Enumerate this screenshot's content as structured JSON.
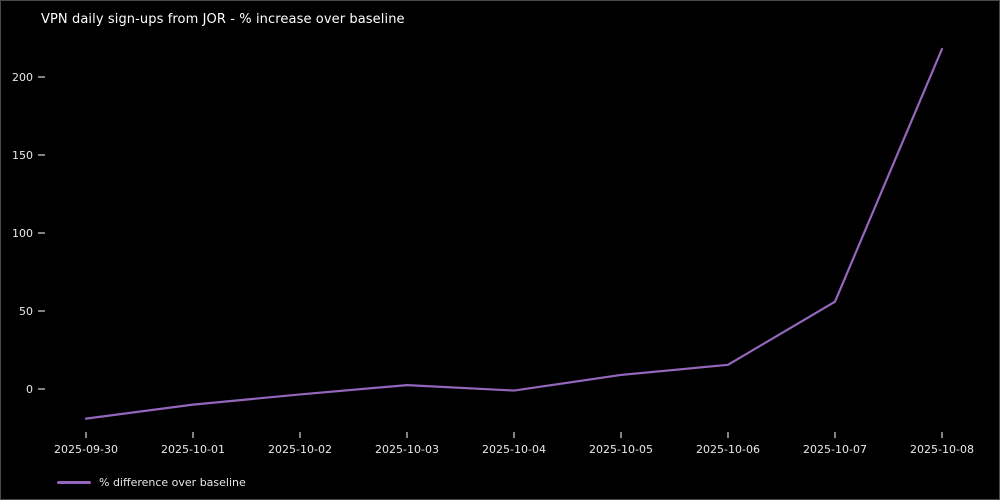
{
  "window": {
    "background": "#000000",
    "border_color": "#4a4a4a"
  },
  "chart_data": {
    "type": "line",
    "title": "VPN daily sign-ups from JOR - % increase over baseline",
    "xlabel": "",
    "ylabel": "",
    "categories": [
      "2025-09-30",
      "2025-10-01",
      "2025-10-02",
      "2025-10-03",
      "2025-10-04",
      "2025-10-05",
      "2025-10-06",
      "2025-10-07",
      "2025-10-08"
    ],
    "series": [
      {
        "name": "% difference over baseline",
        "color": "#9467bd",
        "values": [
          -19,
          -10,
          -3.5,
          2.5,
          -1,
          9,
          15.5,
          56,
          218
        ]
      }
    ],
    "yticks": [
      0,
      50,
      100,
      150,
      200
    ],
    "ylim": [
      -30,
      230
    ],
    "grid": false,
    "legend_position": "lower-left-below-axis",
    "background": "#000000",
    "text_color": "#e8e8e8",
    "tick_color": "#c9c9c9"
  }
}
